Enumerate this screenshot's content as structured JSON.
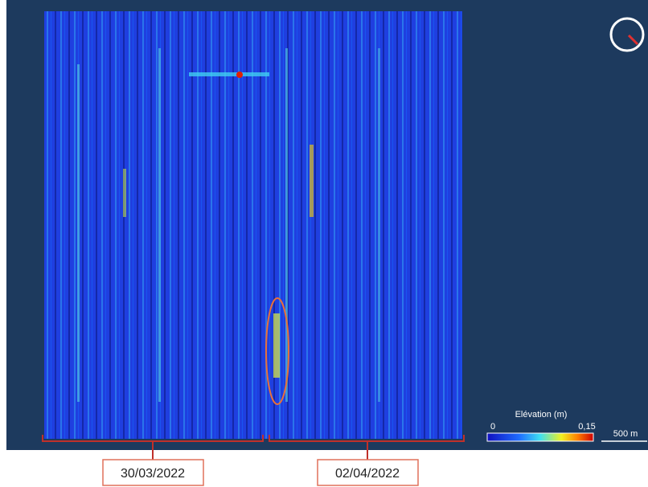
{
  "legend": {
    "title": "Elévation (m)",
    "min_label": "0",
    "max_label": "0,15"
  },
  "scale_bar": "500 m",
  "survey_dates": [
    "30/03/2022",
    "02/04/2022"
  ]
}
